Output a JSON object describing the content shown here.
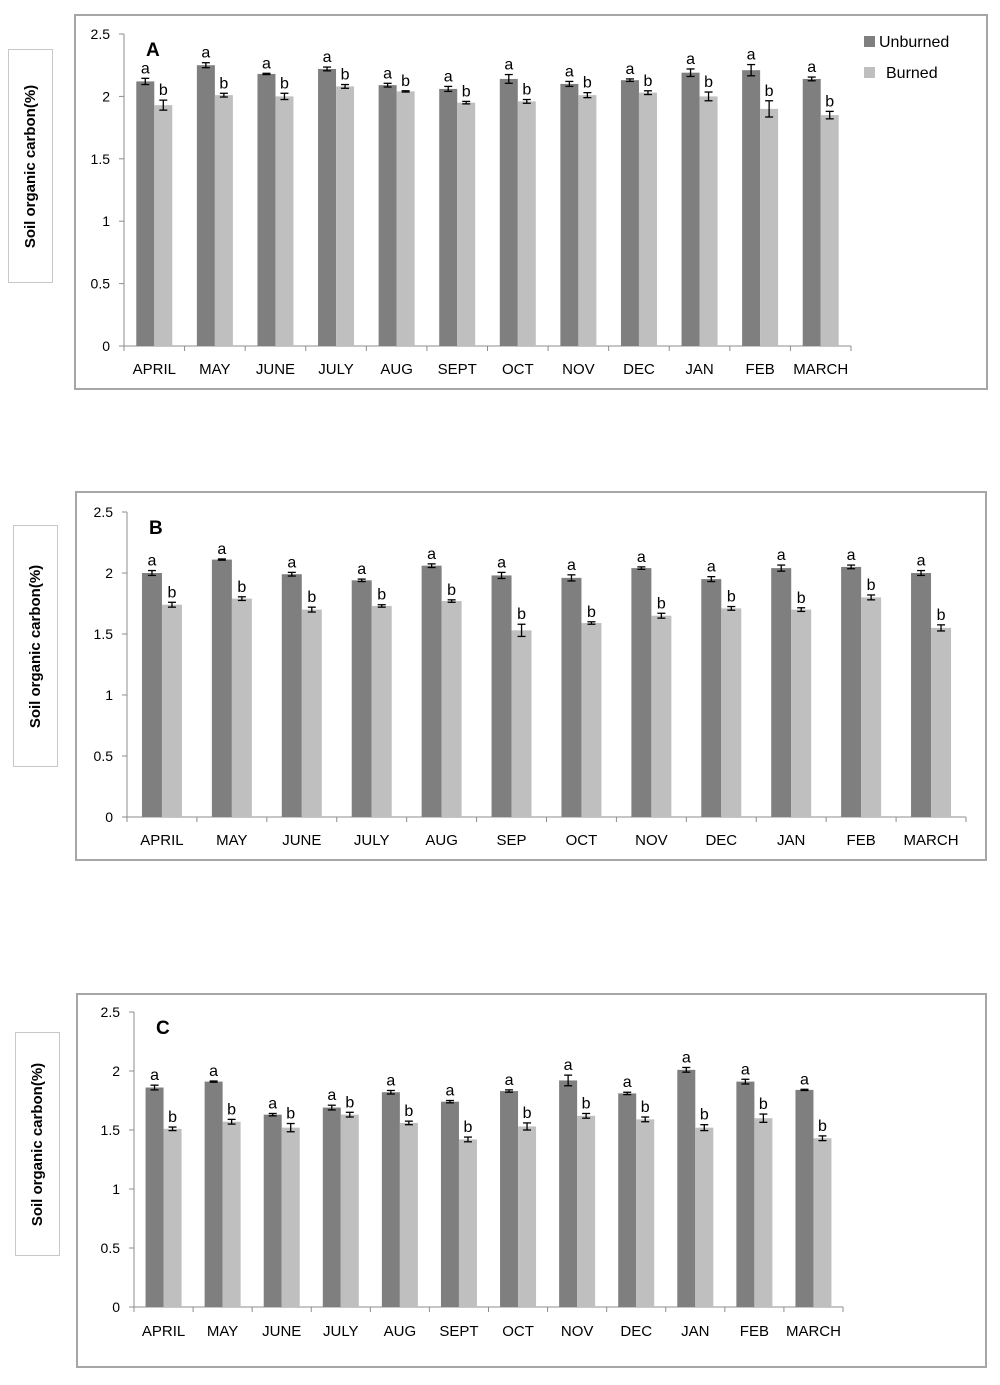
{
  "legend": {
    "series": [
      {
        "name": "Unburned",
        "color": "#7f7f7f"
      },
      {
        "name": "Burned",
        "color": "#bfbfbf"
      }
    ]
  },
  "chart_data": [
    {
      "type": "bar",
      "panel_label": "A",
      "ylabel": "Soil organic carbon(%)",
      "xlabel": "",
      "ylim": [
        0,
        2.5
      ],
      "yticks": [
        "0",
        "0.5",
        "1",
        "1.5",
        "2",
        "2.5"
      ],
      "legend_position": "top-right",
      "categories": [
        "APRIL",
        "MAY",
        "JUNE",
        "JULY",
        "AUG",
        "SEPT",
        "OCT",
        "NOV",
        "DEC",
        "JAN",
        "FEB",
        "MARCH"
      ],
      "series": [
        {
          "name": "Unburned",
          "values": [
            2.12,
            2.25,
            2.18,
            2.22,
            2.09,
            2.06,
            2.14,
            2.1,
            2.13,
            2.19,
            2.21,
            2.14
          ],
          "errors": [
            0.025,
            0.02,
            0.005,
            0.015,
            0.015,
            0.02,
            0.035,
            0.02,
            0.01,
            0.03,
            0.045,
            0.015
          ],
          "letters": [
            "a",
            "a",
            "a",
            "a",
            "a",
            "a",
            "a",
            "a",
            "a",
            "a",
            "a",
            "a"
          ]
        },
        {
          "name": "Burned",
          "values": [
            1.93,
            2.01,
            2.0,
            2.08,
            2.04,
            1.95,
            1.96,
            2.01,
            2.03,
            2.0,
            1.9,
            1.85
          ],
          "errors": [
            0.04,
            0.015,
            0.025,
            0.015,
            0.005,
            0.01,
            0.015,
            0.02,
            0.015,
            0.035,
            0.065,
            0.03
          ],
          "letters": [
            "b",
            "b",
            "b",
            "b",
            "b",
            "b",
            "b",
            "b",
            "b",
            "b",
            "b",
            "b"
          ]
        }
      ]
    },
    {
      "type": "bar",
      "panel_label": "B",
      "ylabel": "Soil organic carbon(%)",
      "xlabel": "",
      "ylim": [
        0,
        2.5
      ],
      "yticks": [
        "0",
        "0.5",
        "1",
        "1.5",
        "2",
        "2.5"
      ],
      "categories": [
        "APRIL",
        "MAY",
        "JUNE",
        "JULY",
        "AUG",
        "SEP",
        "OCT",
        "NOV",
        "DEC",
        "JAN",
        "FEB",
        "MARCH"
      ],
      "series": [
        {
          "name": "Unburned",
          "values": [
            2.0,
            2.11,
            1.99,
            1.94,
            2.06,
            1.98,
            1.96,
            2.04,
            1.95,
            2.04,
            2.05,
            2.0
          ],
          "errors": [
            0.02,
            0.005,
            0.015,
            0.01,
            0.015,
            0.025,
            0.025,
            0.01,
            0.02,
            0.025,
            0.015,
            0.02
          ],
          "letters": [
            "a",
            "a",
            "a",
            "a",
            "a",
            "a",
            "a",
            "a",
            "a",
            "a",
            "a",
            "a"
          ]
        },
        {
          "name": "Burned",
          "values": [
            1.74,
            1.79,
            1.7,
            1.73,
            1.77,
            1.53,
            1.59,
            1.65,
            1.71,
            1.7,
            1.8,
            1.55
          ],
          "errors": [
            0.02,
            0.015,
            0.02,
            0.01,
            0.01,
            0.05,
            0.01,
            0.02,
            0.015,
            0.015,
            0.02,
            0.025
          ],
          "letters": [
            "b",
            "b",
            "b",
            "b",
            "b",
            "b",
            "b",
            "b",
            "b",
            "b",
            "b",
            "b"
          ]
        }
      ]
    },
    {
      "type": "bar",
      "panel_label": "C",
      "ylabel": "Soil organic carbon(%)",
      "xlabel": "",
      "ylim": [
        0,
        2.5
      ],
      "yticks": [
        "0",
        "0.5",
        "1",
        "1.5",
        "2",
        "2.5"
      ],
      "categories": [
        "APRIL",
        "MAY",
        "JUNE",
        "JULY",
        "AUG",
        "SEPT",
        "OCT",
        "NOV",
        "DEC",
        "JAN",
        "FEB",
        "MARCH"
      ],
      "series": [
        {
          "name": "Unburned",
          "values": [
            1.86,
            1.91,
            1.63,
            1.69,
            1.82,
            1.74,
            1.83,
            1.92,
            1.81,
            2.01,
            1.91,
            1.84
          ],
          "errors": [
            0.02,
            0.005,
            0.01,
            0.02,
            0.015,
            0.01,
            0.01,
            0.045,
            0.01,
            0.02,
            0.02,
            0.005
          ],
          "letters": [
            "a",
            "a",
            "a",
            "a",
            "a",
            "a",
            "a",
            "a",
            "a",
            "a",
            "a",
            "a"
          ]
        },
        {
          "name": "Burned",
          "values": [
            1.51,
            1.57,
            1.52,
            1.63,
            1.56,
            1.42,
            1.53,
            1.62,
            1.59,
            1.52,
            1.6,
            1.43
          ],
          "errors": [
            0.015,
            0.02,
            0.035,
            0.02,
            0.015,
            0.02,
            0.03,
            0.02,
            0.02,
            0.025,
            0.035,
            0.02
          ],
          "letters": [
            "b",
            "b",
            "b",
            "b",
            "b",
            "b",
            "b",
            "b",
            "b",
            "b",
            "b",
            "b"
          ]
        }
      ]
    }
  ]
}
